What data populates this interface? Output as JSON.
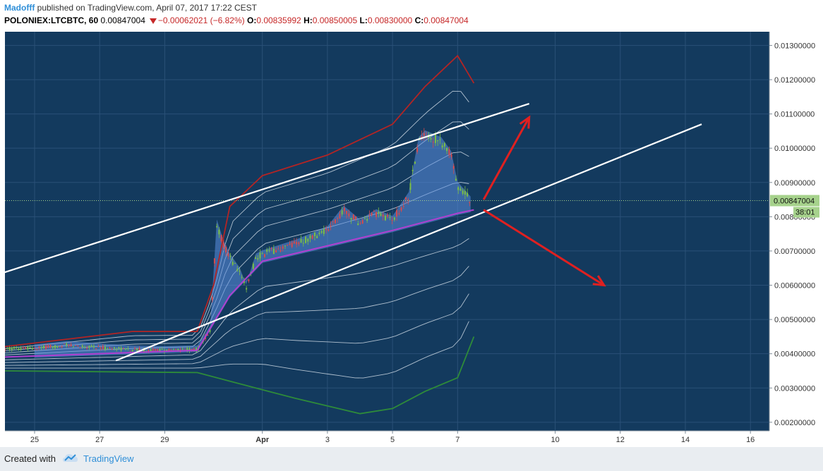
{
  "header": {
    "author": "Madofff",
    "published_text": " published on TradingView.com, April 07, 2017 17:22 CEST",
    "symbol": "POLONIEX:LTCBTC, 60",
    "last_price": "0.00847004",
    "change": "−0.00062021 (−6.82%)",
    "o_label": "O:",
    "o_value": "0.00835992",
    "h_label": "H:",
    "h_value": "0.00850005",
    "l_label": "L:",
    "l_value": "0.00830000",
    "c_label": "C:",
    "c_value": "0.00847004"
  },
  "footer": {
    "created_with": "Created with",
    "brand": "TradingView"
  },
  "colors": {
    "background": "#133a5e",
    "grid": "#2a5077",
    "candle_up": "#7cbf43",
    "candle_down": "#d84a4a",
    "upper_band": "#b32424",
    "lower_band": "#2e8b3a",
    "mid_band": "#b040d0",
    "inner_bands": "#e6eef5",
    "cloud": "#5b8ee0",
    "trendline": "#ffffff",
    "arrow": "#e02020",
    "price_tag": "#a6d28c"
  },
  "chart_data": {
    "type": "candlestick",
    "timeframe": "60",
    "x_axis": {
      "tick_labels": [
        "25",
        "27",
        "29",
        "Apr",
        "3",
        "5",
        "7",
        "10",
        "12",
        "14",
        "16"
      ]
    },
    "y_axis": {
      "range": [
        0.00175,
        0.0134
      ],
      "tick_labels": [
        "0.01300000",
        "0.01200000",
        "0.01100000",
        "0.01000000",
        "0.00900000",
        "0.00800000",
        "0.00700000",
        "0.00600000",
        "0.00500000",
        "0.00400000",
        "0.00300000",
        "0.00200000"
      ],
      "tick_values": [
        0.013,
        0.012,
        0.011,
        0.01,
        0.009,
        0.008,
        0.007,
        0.006,
        0.005,
        0.004,
        0.003,
        0.002
      ]
    },
    "last_price": {
      "value": 0.00847004,
      "label": "0.00847004",
      "countdown": "38:01"
    },
    "price_path": [
      [
        "25",
        0.00415
      ],
      [
        "26",
        0.00425
      ],
      [
        "27",
        0.00418
      ],
      [
        "28",
        0.00412
      ],
      [
        "29",
        0.0041
      ],
      [
        "30",
        0.00412
      ],
      [
        "30.4",
        0.0047
      ],
      [
        "30.6",
        0.0078
      ],
      [
        "30.8",
        0.0072
      ],
      [
        "31",
        0.0068
      ],
      [
        "31.3",
        0.0064
      ],
      [
        "31.5",
        0.0059
      ],
      [
        "31.8",
        0.0068
      ],
      [
        "Apr",
        0.0069
      ],
      [
        "2",
        0.0072
      ],
      [
        "3",
        0.0076
      ],
      [
        "3.5",
        0.0082
      ],
      [
        "4",
        0.0078
      ],
      [
        "4.5",
        0.0081
      ],
      [
        "5",
        0.0079
      ],
      [
        "5.5",
        0.0086
      ],
      [
        "5.8",
        0.0102
      ],
      [
        "6",
        0.0104
      ],
      [
        "6.5",
        0.0102
      ],
      [
        "6.8",
        0.0098
      ],
      [
        "7",
        0.0089
      ],
      [
        "7.4",
        0.00847
      ]
    ],
    "indicators": [
      {
        "name": "upper_band",
        "points": [
          [
            "24",
            0.0042
          ],
          [
            "28",
            0.00465
          ],
          [
            "30",
            0.00465
          ],
          [
            "30.5",
            0.006
          ],
          [
            "31",
            0.0083
          ],
          [
            "Apr",
            0.0092
          ],
          [
            "3",
            0.0098
          ],
          [
            "5",
            0.0107
          ],
          [
            "6",
            0.0118
          ],
          [
            "7",
            0.0127
          ],
          [
            "7.5",
            0.0119
          ]
        ]
      },
      {
        "name": "lower_band",
        "points": [
          [
            "24",
            0.0035
          ],
          [
            "30",
            0.00345
          ],
          [
            "31",
            0.0032
          ],
          [
            "2",
            0.0027
          ],
          [
            "4",
            0.00225
          ],
          [
            "5",
            0.0024
          ],
          [
            "6",
            0.0029
          ],
          [
            "7",
            0.0033
          ],
          [
            "7.5",
            0.0045
          ]
        ]
      },
      {
        "name": "mid_band",
        "points": [
          [
            "24",
            0.0039
          ],
          [
            "30",
            0.0041
          ],
          [
            "31",
            0.0057
          ],
          [
            "Apr",
            0.0067
          ],
          [
            "5",
            0.0076
          ],
          [
            "7",
            0.0081
          ],
          [
            "7.5",
            0.0082
          ]
        ]
      }
    ],
    "trendlines": [
      {
        "from": [
          "23.5",
          0.0062
        ],
        "to": [
          "9.2",
          0.0113
        ]
      },
      {
        "from": [
          "27.5",
          0.0038
        ],
        "to": [
          "14.5",
          0.0107
        ]
      }
    ],
    "annotations": [
      {
        "type": "arrow",
        "from": [
          "7.8",
          0.0085
        ],
        "to": [
          "9.2",
          0.0109
        ]
      },
      {
        "type": "arrow",
        "from": [
          "7.8",
          0.0082
        ],
        "to": [
          "11.5",
          0.006
        ]
      }
    ],
    "grid": true,
    "legend": "none"
  }
}
